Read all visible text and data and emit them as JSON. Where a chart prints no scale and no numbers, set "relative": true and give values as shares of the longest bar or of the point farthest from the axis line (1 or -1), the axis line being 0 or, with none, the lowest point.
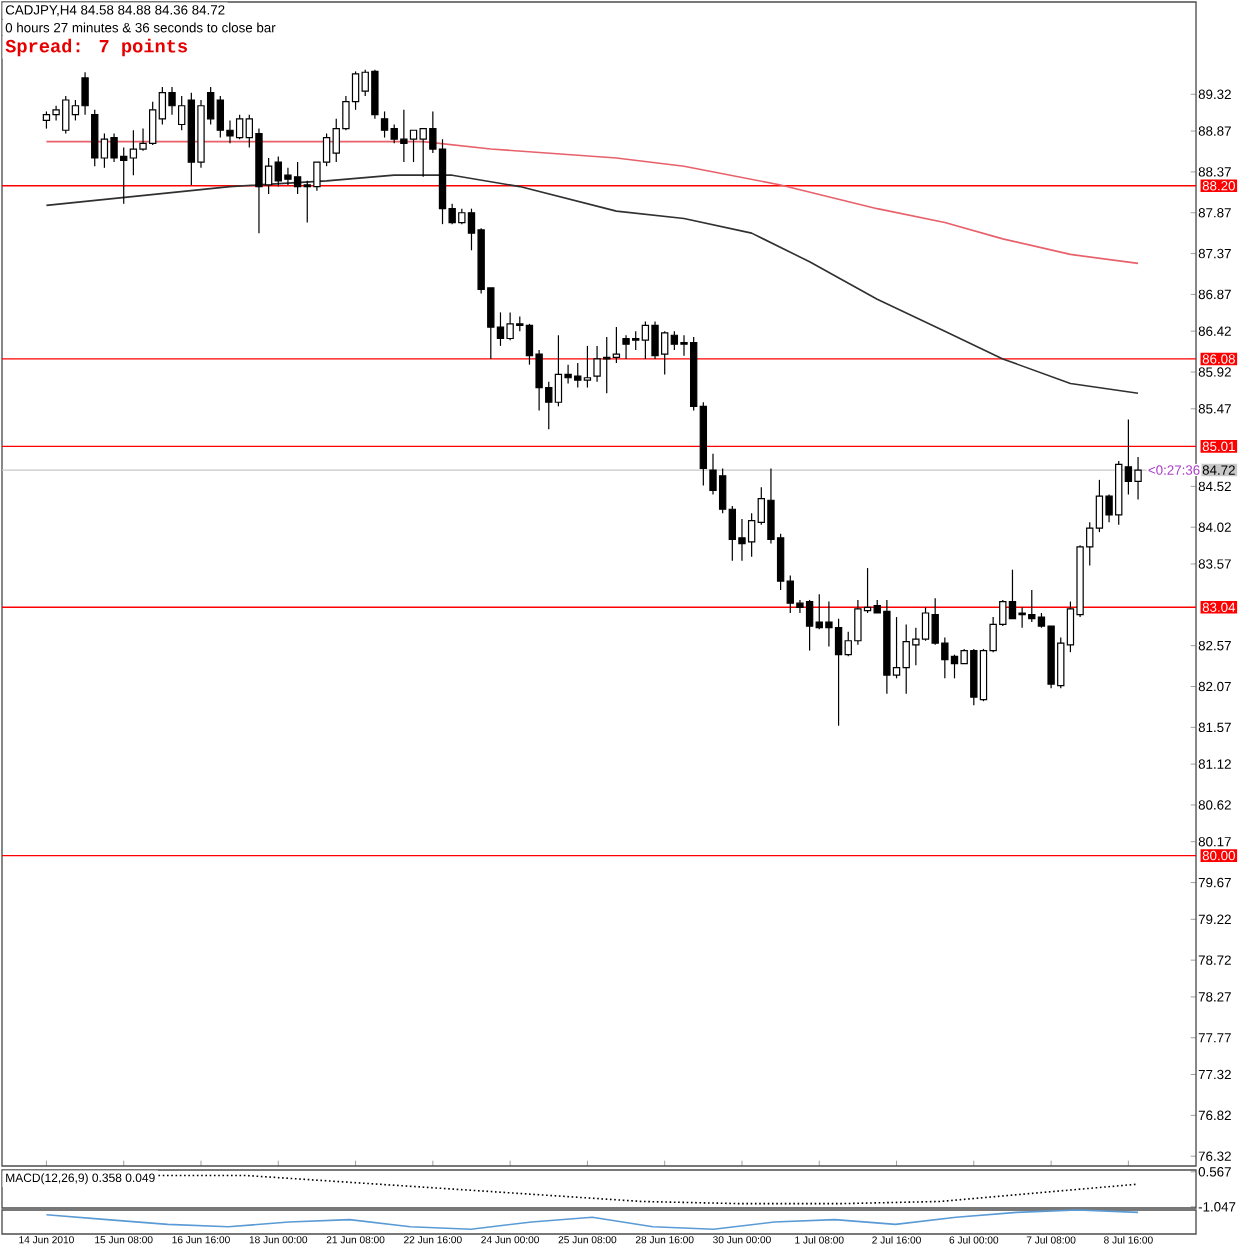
{
  "chart_data": [
    {
      "type": "candlestick",
      "title": "CADJPY,H4  84.58 84.88 84.36 84.72",
      "subtitle": "0 hours 27 minutes & 36 seconds to close bar",
      "annotations": [
        "Spread: 7 points",
        "<0:27:36"
      ],
      "categories": [
        "14 Jun 2010",
        null,
        null,
        null,
        null,
        null,
        null,
        null,
        "15 Jun 08:00",
        null,
        null,
        null,
        null,
        null,
        null,
        null,
        "16 Jun 16:00",
        null,
        null,
        null,
        null,
        null,
        null,
        null,
        "18 Jun 00:00",
        null,
        null,
        null,
        null,
        null,
        null,
        null,
        "21 Jun 08:00",
        null,
        null,
        null,
        null,
        null,
        null,
        null,
        "22 Jun 16:00",
        null,
        null,
        null,
        null,
        null,
        null,
        null,
        "24 Jun 00:00",
        null,
        null,
        null,
        null,
        null,
        null,
        null,
        "25 Jun 08:00",
        null,
        null,
        null,
        null,
        null,
        null,
        null,
        "28 Jun 16:00",
        null,
        null,
        null,
        null,
        null,
        null,
        null,
        "30 Jun 00:00",
        null,
        null,
        null,
        null,
        null,
        null,
        null,
        "1 Jul 08:00",
        null,
        null,
        null,
        null,
        null,
        null,
        null,
        "2 Jul 16:00",
        null,
        null,
        null,
        null,
        null,
        null,
        null,
        "6 Jul 00:00",
        null,
        null,
        null,
        null,
        null,
        null,
        null,
        "7 Jul 08:00",
        null,
        null,
        null,
        null,
        null,
        null,
        null,
        "8 Jul 16:00",
        null
      ],
      "ylim": [
        76.2,
        90.45
      ],
      "yticks": [
        89.32,
        88.87,
        88.37,
        87.87,
        87.37,
        86.87,
        86.42,
        85.92,
        85.47,
        84.52,
        84.02,
        83.57,
        82.57,
        82.07,
        81.57,
        81.12,
        80.62,
        80.17,
        79.67,
        79.22,
        78.72,
        78.27,
        77.77,
        77.32,
        76.82,
        76.32
      ],
      "ref_lines": [
        {
          "axis": "y",
          "value": 88.2,
          "label": "88.20",
          "color": "#ff0000"
        },
        {
          "axis": "y",
          "value": 86.08,
          "label": "86.08",
          "color": "#ff0000"
        },
        {
          "axis": "y",
          "value": 85.01,
          "label": "85.01",
          "color": "#ff0000"
        },
        {
          "axis": "y",
          "value": 84.72,
          "label": "84.72",
          "color": "#c8c8c8"
        },
        {
          "axis": "y",
          "value": 83.04,
          "label": "83.04",
          "color": "#ff0000"
        },
        {
          "axis": "y",
          "value": 80.0,
          "label": "80.00",
          "color": "#ff0000"
        }
      ],
      "series": [
        {
          "type": "line",
          "color": "#e8606a",
          "values": [
            88.74,
            null,
            null,
            null,
            null,
            null,
            null,
            null,
            null,
            null,
            null,
            null,
            null,
            null,
            null,
            null,
            null,
            null,
            null,
            null,
            88.74,
            null,
            null,
            null,
            null,
            null,
            null,
            null,
            null,
            null,
            null,
            null,
            null,
            null,
            null,
            null,
            null,
            null,
            null,
            88.74,
            null,
            null,
            null,
            null,
            null,
            null,
            88.65,
            null,
            null,
            null,
            null,
            null,
            null,
            null,
            null,
            null,
            null,
            null,
            null,
            88.54,
            null,
            null,
            null,
            null,
            null,
            null,
            88.44,
            null,
            null,
            null,
            null,
            null,
            null,
            null,
            null,
            null,
            88.21,
            null,
            null,
            null,
            null,
            null,
            null,
            null,
            null,
            null,
            87.92,
            null,
            null,
            null,
            null,
            null,
            null,
            87.75,
            null,
            null,
            null,
            null,
            null,
            87.55,
            null,
            null,
            null,
            null,
            null,
            null,
            87.36,
            null,
            null,
            null,
            null,
            null,
            null,
            87.25
          ]
        },
        {
          "type": "line",
          "color": "#303030",
          "values": [
            87.96,
            null,
            null,
            null,
            null,
            null,
            null,
            null,
            null,
            null,
            null,
            null,
            null,
            null,
            null,
            null,
            null,
            null,
            null,
            88.19,
            null,
            null,
            null,
            null,
            null,
            null,
            null,
            null,
            null,
            88.26,
            null,
            null,
            null,
            null,
            null,
            null,
            88.33,
            null,
            null,
            null,
            null,
            null,
            88.33,
            null,
            null,
            null,
            null,
            null,
            null,
            88.19,
            null,
            null,
            null,
            null,
            null,
            null,
            null,
            null,
            null,
            87.89,
            null,
            null,
            null,
            null,
            null,
            null,
            87.8,
            null,
            null,
            null,
            null,
            null,
            null,
            87.62,
            null,
            null,
            null,
            null,
            null,
            87.27,
            null,
            null,
            null,
            null,
            null,
            null,
            86.81,
            null,
            null,
            null,
            null,
            null,
            null,
            86.42,
            null,
            null,
            null,
            null,
            null,
            86.08,
            null,
            null,
            null,
            null,
            null,
            null,
            85.78,
            null,
            null,
            null,
            null,
            null,
            null,
            85.66
          ]
        }
      ],
      "ohlc": [
        [
          89.0,
          89.11,
          88.9,
          89.07
        ],
        [
          89.07,
          89.18,
          89.0,
          89.13
        ],
        [
          88.88,
          89.3,
          88.84,
          89.25
        ],
        [
          89.07,
          89.25,
          89.0,
          89.18
        ],
        [
          89.52,
          89.59,
          89.07,
          89.18
        ],
        [
          89.07,
          89.13,
          88.44,
          88.54
        ],
        [
          88.54,
          88.84,
          88.42,
          88.77
        ],
        [
          88.79,
          88.84,
          88.49,
          88.54
        ],
        [
          88.56,
          88.67,
          87.98,
          88.51
        ],
        [
          88.54,
          88.88,
          88.33,
          88.65
        ],
        [
          88.65,
          88.9,
          88.63,
          88.72
        ],
        [
          88.72,
          89.23,
          88.7,
          89.13
        ],
        [
          89.02,
          89.41,
          88.95,
          89.34
        ],
        [
          89.34,
          89.41,
          89.07,
          89.18
        ],
        [
          88.95,
          89.3,
          88.88,
          89.18
        ],
        [
          89.25,
          89.34,
          88.21,
          88.49
        ],
        [
          88.49,
          89.25,
          88.42,
          89.18
        ],
        [
          89.34,
          89.41,
          88.95,
          89.02
        ],
        [
          89.25,
          89.3,
          88.79,
          88.88
        ],
        [
          88.88,
          89.0,
          88.72,
          88.81
        ],
        [
          88.79,
          89.07,
          88.77,
          89.02
        ],
        [
          88.79,
          89.07,
          88.67,
          89.02
        ],
        [
          88.84,
          88.9,
          87.62,
          88.19
        ],
        [
          88.21,
          88.54,
          88.1,
          88.44
        ],
        [
          88.49,
          88.56,
          88.19,
          88.26
        ],
        [
          88.33,
          88.42,
          88.21,
          88.28
        ],
        [
          88.31,
          88.49,
          88.1,
          88.19
        ],
        [
          88.21,
          88.26,
          87.75,
          88.19
        ],
        [
          88.19,
          88.49,
          88.14,
          88.49
        ],
        [
          88.49,
          88.84,
          88.44,
          88.79
        ],
        [
          88.6,
          89.02,
          88.49,
          88.9
        ],
        [
          88.9,
          89.3,
          88.88,
          89.23
        ],
        [
          89.23,
          89.6,
          89.13,
          89.57
        ],
        [
          89.36,
          89.62,
          89.3,
          89.59
        ],
        [
          89.6,
          89.62,
          89.02,
          89.07
        ],
        [
          89.02,
          89.11,
          88.79,
          88.88
        ],
        [
          88.9,
          88.95,
          88.72,
          88.77
        ],
        [
          88.77,
          89.13,
          88.49,
          88.72
        ],
        [
          88.77,
          88.88,
          88.49,
          88.88
        ],
        [
          88.77,
          88.9,
          88.31,
          88.9
        ],
        [
          88.9,
          89.11,
          88.6,
          88.65
        ],
        [
          88.65,
          88.77,
          87.73,
          87.92
        ],
        [
          87.92,
          87.98,
          87.73,
          87.75
        ],
        [
          87.75,
          87.92,
          87.73,
          87.87
        ],
        [
          87.87,
          87.92,
          87.41,
          87.62
        ],
        [
          87.66,
          87.68,
          86.88,
          86.93
        ],
        [
          86.95,
          86.95,
          86.08,
          86.47
        ],
        [
          86.47,
          86.65,
          86.24,
          86.33
        ],
        [
          86.33,
          86.65,
          86.31,
          86.51
        ],
        [
          86.51,
          86.6,
          86.42,
          86.49
        ],
        [
          86.49,
          86.51,
          86.01,
          86.12
        ],
        [
          86.14,
          86.19,
          85.45,
          85.73
        ],
        [
          85.73,
          85.8,
          85.22,
          85.55
        ],
        [
          85.55,
          86.37,
          85.5,
          85.89
        ],
        [
          85.89,
          86.01,
          85.78,
          85.85
        ],
        [
          85.87,
          86.03,
          85.73,
          85.82
        ],
        [
          85.82,
          86.24,
          85.73,
          85.85
        ],
        [
          85.87,
          86.24,
          85.8,
          86.08
        ],
        [
          86.1,
          86.35,
          85.66,
          86.08
        ],
        [
          86.1,
          86.47,
          86.03,
          86.14
        ],
        [
          86.33,
          86.37,
          86.08,
          86.26
        ],
        [
          86.33,
          86.42,
          86.19,
          86.31
        ],
        [
          86.31,
          86.54,
          86.08,
          86.49
        ],
        [
          86.49,
          86.54,
          86.08,
          86.12
        ],
        [
          86.14,
          86.42,
          85.89,
          86.4
        ],
        [
          86.37,
          86.42,
          86.19,
          86.26
        ],
        [
          86.28,
          86.37,
          86.12,
          86.26
        ],
        [
          86.28,
          86.35,
          85.45,
          85.5
        ],
        [
          85.5,
          85.55,
          84.53,
          84.74
        ],
        [
          84.72,
          84.92,
          84.42,
          84.47
        ],
        [
          84.65,
          84.74,
          84.19,
          84.24
        ],
        [
          84.24,
          84.28,
          83.61,
          83.87
        ],
        [
          83.89,
          84.12,
          83.61,
          83.82
        ],
        [
          83.84,
          84.19,
          83.66,
          84.1
        ],
        [
          84.08,
          84.51,
          84.05,
          84.37
        ],
        [
          84.35,
          84.74,
          83.82,
          83.87
        ],
        [
          83.89,
          83.94,
          83.25,
          83.36
        ],
        [
          83.36,
          83.43,
          82.97,
          83.09
        ],
        [
          83.09,
          83.13,
          82.97,
          83.04
        ],
        [
          83.11,
          83.13,
          82.51,
          82.81
        ],
        [
          82.86,
          83.2,
          82.77,
          82.79
        ],
        [
          82.86,
          83.11,
          82.56,
          82.79
        ],
        [
          82.79,
          82.9,
          81.59,
          82.46
        ],
        [
          82.46,
          82.74,
          82.44,
          82.63
        ],
        [
          82.63,
          83.13,
          82.58,
          83.02
        ],
        [
          83.0,
          83.52,
          82.97,
          83.04
        ],
        [
          83.06,
          83.13,
          82.97,
          82.97
        ],
        [
          82.99,
          83.13,
          81.98,
          82.21
        ],
        [
          82.21,
          82.92,
          82.17,
          82.3
        ],
        [
          82.3,
          82.83,
          81.98,
          82.62
        ],
        [
          82.58,
          82.79,
          82.33,
          82.65
        ],
        [
          82.65,
          83.04,
          82.63,
          82.97
        ],
        [
          82.95,
          83.15,
          82.58,
          82.6
        ],
        [
          82.6,
          82.67,
          82.17,
          82.4
        ],
        [
          82.44,
          82.46,
          82.17,
          82.35
        ],
        [
          82.35,
          82.53,
          82.35,
          82.51
        ],
        [
          82.51,
          82.53,
          81.84,
          81.94
        ],
        [
          81.91,
          82.53,
          81.89,
          82.51
        ],
        [
          82.51,
          82.92,
          82.49,
          82.83
        ],
        [
          82.83,
          83.13,
          82.81,
          83.11
        ],
        [
          83.11,
          83.5,
          82.9,
          82.9
        ],
        [
          82.97,
          83.04,
          82.79,
          82.95
        ],
        [
          82.95,
          83.25,
          82.86,
          82.9
        ],
        [
          82.92,
          82.97,
          82.79,
          82.81
        ],
        [
          82.81,
          82.81,
          82.05,
          82.1
        ],
        [
          82.08,
          82.67,
          82.05,
          82.6
        ],
        [
          82.58,
          83.11,
          82.49,
          83.02
        ],
        [
          82.95,
          83.8,
          82.92,
          83.78
        ],
        [
          83.78,
          84.08,
          83.55,
          84.01
        ],
        [
          84.01,
          84.6,
          83.96,
          84.4
        ],
        [
          84.4,
          84.42,
          84.08,
          84.17
        ],
        [
          84.17,
          84.83,
          84.05,
          84.79
        ],
        [
          84.76,
          85.34,
          84.42,
          84.58
        ],
        [
          84.58,
          84.88,
          84.36,
          84.72
        ]
      ]
    },
    {
      "type": "line",
      "title": "MACD(12,26,9) 0.358 0.049",
      "ylim": [
        -1.1,
        0.65
      ],
      "yticks": [
        0.567,
        -1.047
      ],
      "tick_labels": "y",
      "categories": [
        null,
        null,
        null,
        null,
        null,
        null,
        null,
        null,
        null,
        null,
        null,
        null
      ],
      "series": [
        {
          "color": "#000000",
          "line_style": "dotted",
          "values": [
            null,
            0.4,
            0.4,
            0.1,
            -0.2,
            -0.5,
            -0.8,
            -0.9,
            -0.9,
            -0.8,
            -0.4,
            0.0
          ]
        }
      ]
    },
    {
      "type": "line",
      "relative": true,
      "tick_labels": false,
      "categories": [
        null,
        null,
        null,
        null,
        null,
        null,
        null,
        null,
        null,
        null,
        null,
        null,
        null,
        null,
        null,
        null,
        null,
        null,
        null
      ],
      "series": [
        {
          "color": "#5b9bd5",
          "values": [
            0.8,
            0.6,
            0.4,
            0.3,
            0.5,
            0.6,
            0.3,
            0.2,
            0.5,
            0.7,
            0.3,
            0.2,
            0.5,
            0.6,
            0.4,
            0.7,
            0.9,
            1.0,
            0.9
          ]
        }
      ]
    }
  ]
}
